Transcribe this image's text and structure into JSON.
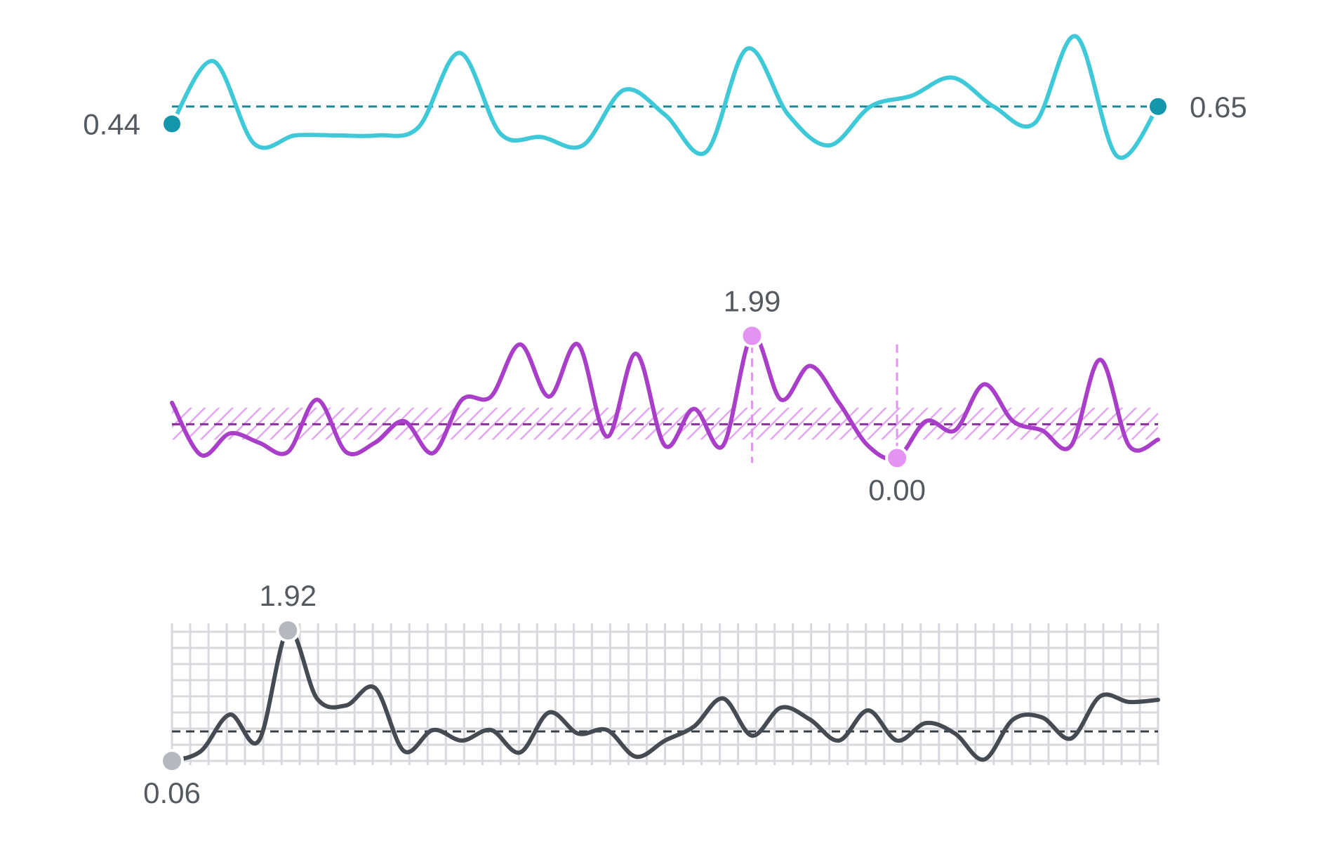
{
  "chart_data": [
    {
      "type": "line",
      "title": "",
      "series": [
        {
          "values": [
            0.44,
            1.2,
            0.2,
            0.3,
            0.3,
            0.3,
            0.4,
            1.3,
            0.32,
            0.28,
            0.18,
            0.85,
            0.55,
            0.1,
            1.35,
            0.55,
            0.18,
            0.65,
            0.78,
            1.0,
            0.65,
            0.45,
            1.5,
            0.05,
            0.65
          ]
        }
      ],
      "reference_value": 0.65,
      "ylim": [
        -0.1,
        1.6
      ],
      "start_label": "0.44",
      "end_label": "0.65",
      "colors": {
        "line": "#3ec8d8",
        "marker": "#1597ab",
        "reference": "#1a8a96"
      },
      "grid": false
    },
    {
      "type": "line",
      "title": "",
      "series": [
        {
          "values": [
            0.9,
            0.05,
            0.4,
            0.25,
            0.1,
            0.95,
            0.1,
            0.25,
            0.6,
            0.08,
            0.95,
            1.0,
            1.85,
            1.0,
            1.85,
            0.35,
            1.7,
            0.2,
            0.8,
            0.2,
            1.99,
            0.95,
            1.5,
            0.9,
            0.2,
            0.0,
            0.6,
            0.45,
            1.2,
            0.6,
            0.45,
            0.2,
            1.6,
            0.2,
            0.3
          ]
        }
      ],
      "reference_value": 0.55,
      "band": [
        0.3,
        0.82
      ],
      "ylim": [
        -0.2,
        2.2
      ],
      "max_label": "1.99",
      "min_label": "0.00",
      "max_index": 20,
      "min_index": 25,
      "colors": {
        "line": "#a93ec8",
        "marker": "#e394f2",
        "band": "#e09af0",
        "reference": "#8a2fa0"
      },
      "grid": false
    },
    {
      "type": "line",
      "title": "",
      "series": [
        {
          "values": [
            0.06,
            0.2,
            0.72,
            0.35,
            1.92,
            0.95,
            0.85,
            1.1,
            0.2,
            0.5,
            0.35,
            0.5,
            0.18,
            0.75,
            0.45,
            0.5,
            0.12,
            0.35,
            0.55,
            0.95,
            0.42,
            0.82,
            0.65,
            0.35,
            0.78,
            0.35,
            0.6,
            0.45,
            0.08,
            0.65,
            0.68,
            0.38,
            0.98,
            0.9,
            0.93
          ]
        }
      ],
      "reference_value": 0.48,
      "ylim": [
        0.0,
        2.05
      ],
      "max_label": "1.92",
      "min_label": "0.06",
      "max_index": 4,
      "min_index": 0,
      "colors": {
        "line": "#454b52",
        "marker": "#b4b9c0",
        "grid": "#d7d9de",
        "reference": "#3a3f45"
      },
      "grid": true
    }
  ]
}
